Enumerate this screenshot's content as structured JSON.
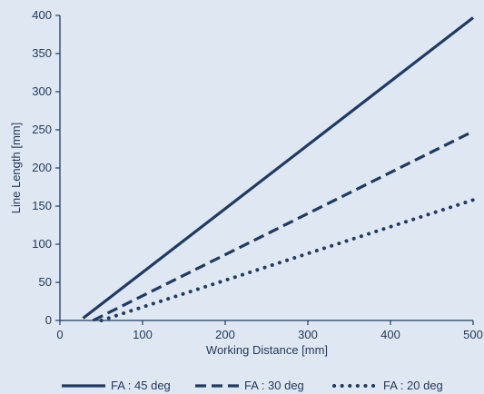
{
  "chart_data": {
    "type": "line",
    "xlabel": "Working Distance [mm]",
    "ylabel": "Line Length [mm]",
    "xlim": [
      0,
      500
    ],
    "ylim": [
      0,
      400
    ],
    "x_ticks": [
      0,
      100,
      200,
      300,
      400,
      500
    ],
    "y_ticks": [
      0,
      50,
      100,
      150,
      200,
      250,
      300,
      350,
      400
    ],
    "grid": false,
    "legend_position": "bottom",
    "colors": {
      "line": "#1f3a63",
      "axis": "#1f3a63",
      "background": "#dfe8f2"
    },
    "series": [
      {
        "name": "FA : 45 deg",
        "style": "solid",
        "x": [
          28,
          500
        ],
        "y": [
          3,
          397
        ]
      },
      {
        "name": "FA : 30 deg",
        "style": "dashed",
        "x": [
          40,
          500
        ],
        "y": [
          0,
          248
        ]
      },
      {
        "name": "FA : 20 deg",
        "style": "dotted",
        "x": [
          50,
          500
        ],
        "y": [
          0,
          158
        ]
      }
    ]
  }
}
